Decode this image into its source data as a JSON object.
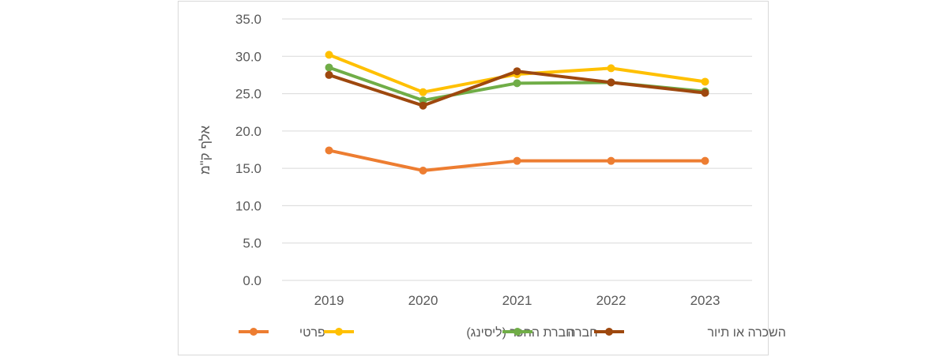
{
  "chart_data": {
    "type": "line",
    "title": "",
    "xlabel": "",
    "ylabel": "אלף ק\"מ",
    "ylim": [
      0,
      35
    ],
    "yticks": [
      "0.0",
      "5.0",
      "10.0",
      "15.0",
      "20.0",
      "25.0",
      "30.0",
      "35.0"
    ],
    "grid": true,
    "legend_position": "bottom",
    "categories": [
      "2019",
      "2020",
      "2021",
      "2022",
      "2023"
    ],
    "series": [
      {
        "name": "פרטי",
        "color": "#ED7D31",
        "values": [
          17.4,
          14.7,
          16.0,
          16.0,
          16.0
        ]
      },
      {
        "name": "חברת החכר (ליסינג)",
        "color": "#FFC000",
        "values": [
          30.2,
          25.2,
          27.6,
          28.4,
          26.6
        ]
      },
      {
        "name": "חברה",
        "color": "#70AD47",
        "values": [
          28.5,
          24.1,
          26.4,
          26.5,
          25.3
        ]
      },
      {
        "name": "השכרה או תיור",
        "color": "#9E480E",
        "values": [
          27.5,
          23.4,
          28.0,
          26.5,
          25.1
        ]
      }
    ]
  }
}
